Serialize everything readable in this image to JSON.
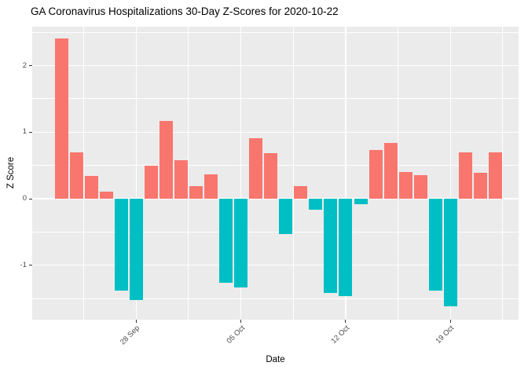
{
  "title": "GA Coronavirus Hospitalizations 30-Day Z-Scores for 2020-10-22",
  "chart_data": {
    "type": "bar",
    "title": "GA Coronavirus Hospitalizations 30-Day Z-Scores for 2020-10-22",
    "xlabel": "Date",
    "ylabel": "Z Score",
    "legend_position": "none",
    "grid": true,
    "ylim": [
      -1.82,
      2.59
    ],
    "categories": [
      "2020-09-23",
      "2020-09-24",
      "2020-09-25",
      "2020-09-26",
      "2020-09-27",
      "2020-09-28",
      "2020-09-29",
      "2020-09-30",
      "2020-10-01",
      "2020-10-02",
      "2020-10-03",
      "2020-10-04",
      "2020-10-05",
      "2020-10-06",
      "2020-10-07",
      "2020-10-08",
      "2020-10-09",
      "2020-10-10",
      "2020-10-11",
      "2020-10-12",
      "2020-10-13",
      "2020-10-14",
      "2020-10-15",
      "2020-10-16",
      "2020-10-17",
      "2020-10-18",
      "2020-10-19",
      "2020-10-20",
      "2020-10-21",
      "2020-10-22"
    ],
    "values": [
      2.41,
      0.7,
      0.34,
      0.11,
      -1.38,
      -1.52,
      0.5,
      1.17,
      0.58,
      0.19,
      0.37,
      -1.26,
      -1.34,
      0.91,
      0.69,
      -0.53,
      0.19,
      -0.17,
      -1.42,
      -1.46,
      -0.08,
      0.73,
      0.84,
      0.4,
      0.35,
      -1.38,
      -1.62,
      0.7,
      0.39,
      0.7
    ],
    "bar_colors": {
      "positive": "#F8766D",
      "negative": "#00BFC4"
    },
    "x_ticks": [
      {
        "label": "28 Sep",
        "index": 5
      },
      {
        "label": "05 Oct",
        "index": 12
      },
      {
        "label": "12 Oct",
        "index": 19
      },
      {
        "label": "19 Oct",
        "index": 26
      }
    ],
    "y_ticks": [
      {
        "label": "-1",
        "value": -1
      },
      {
        "label": "0",
        "value": 0
      },
      {
        "label": "1",
        "value": 1
      },
      {
        "label": "2",
        "value": 2
      }
    ],
    "y_minor_gridlines": [
      2.5,
      1.5,
      0.5,
      -0.5,
      -1.5
    ],
    "x_minor_gridline_indices": [
      1.5,
      8.5,
      15.5,
      22.5,
      29.5
    ],
    "panel_background": "#EBEBEB",
    "gridline_color": "#FFFFFF",
    "axis_text_color": "#4D4D4D"
  }
}
